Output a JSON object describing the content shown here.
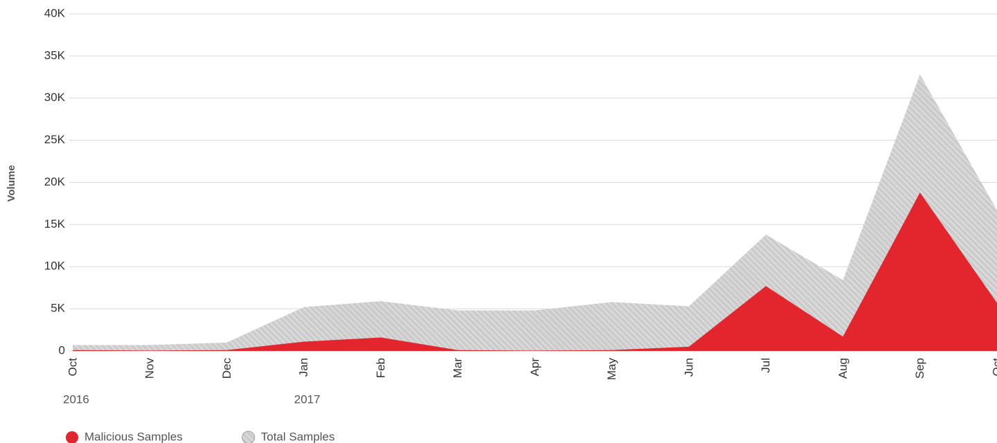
{
  "chart_data": {
    "type": "area",
    "y_label": "Volume",
    "categories": [
      "Oct",
      "Nov",
      "Dec",
      "Jan",
      "Feb",
      "Mar",
      "Apr",
      "May",
      "Jun",
      "Jul",
      "Aug",
      "Sep",
      "Oct"
    ],
    "year_labels": [
      "2016",
      null,
      null,
      "2017",
      null,
      null,
      null,
      null,
      null,
      null,
      null,
      null,
      null
    ],
    "series": [
      {
        "name": "Total Samples",
        "color": "#cccccc",
        "pattern": "hatch",
        "values": [
          700,
          700,
          1000,
          5200,
          5900,
          4800,
          4800,
          5800,
          5300,
          13800,
          8400,
          32800,
          16700
        ]
      },
      {
        "name": "Malicious Samples",
        "color": "#e3262d",
        "pattern": "solid",
        "values": [
          100,
          50,
          100,
          1100,
          1600,
          100,
          50,
          100,
          500,
          7700,
          1700,
          18800,
          5700
        ]
      }
    ],
    "ylim": [
      0,
      40000
    ],
    "yticks": [
      0,
      {
        "value": 5000,
        "label": "5K"
      },
      {
        "value": 10000,
        "label": "10K"
      },
      {
        "value": 15000,
        "label": "15K"
      },
      {
        "value": 20000,
        "label": "20K"
      },
      {
        "value": 25000,
        "label": "25K"
      },
      {
        "value": 30000,
        "label": "30K"
      },
      {
        "value": 35000,
        "label": "35K"
      },
      {
        "value": 40000,
        "label": "40K"
      }
    ],
    "legend_order": [
      1,
      0
    ],
    "grid": true
  }
}
